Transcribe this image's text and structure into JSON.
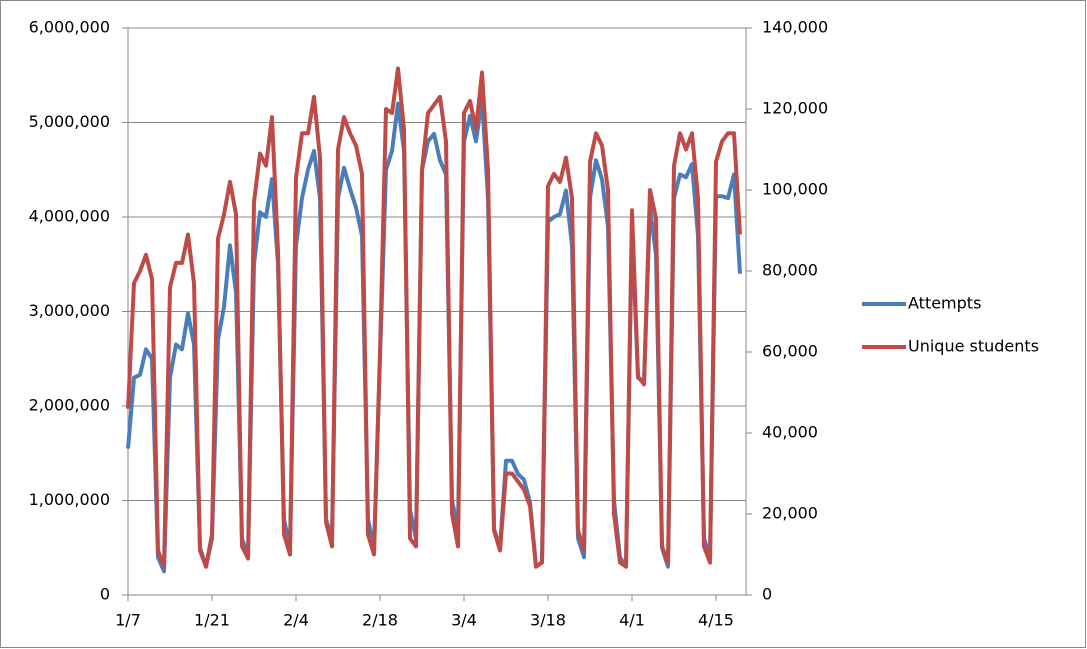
{
  "chart_data": {
    "type": "line",
    "categories": [
      "1/7",
      null,
      null,
      null,
      null,
      null,
      null,
      null,
      null,
      null,
      null,
      null,
      null,
      null,
      "1/21",
      null,
      null,
      null,
      null,
      null,
      null,
      null,
      null,
      null,
      null,
      null,
      null,
      null,
      "2/4",
      null,
      null,
      null,
      null,
      null,
      null,
      null,
      null,
      null,
      null,
      null,
      null,
      null,
      "2/18",
      null,
      null,
      null,
      null,
      null,
      null,
      null,
      null,
      null,
      null,
      null,
      null,
      null,
      "3/4",
      null,
      null,
      null,
      null,
      null,
      null,
      null,
      null,
      null,
      null,
      null,
      null,
      null,
      "3/18",
      null,
      null,
      null,
      null,
      null,
      null,
      null,
      null,
      null,
      null,
      null,
      null,
      null,
      "4/1",
      null,
      null,
      null,
      null,
      null,
      null,
      null,
      null,
      null,
      null,
      null,
      null,
      null,
      "4/15",
      null,
      null,
      null,
      null
    ],
    "series": [
      {
        "name": "Attempts",
        "color": "#4a7ebb",
        "axis": "y",
        "values": [
          1550000,
          2300000,
          2330000,
          2600000,
          2500000,
          400000,
          250000,
          2300000,
          2650000,
          2600000,
          2980000,
          2650000,
          500000,
          300000,
          600000,
          2700000,
          3050000,
          3700000,
          3200000,
          600000,
          400000,
          3500000,
          4050000,
          4000000,
          4400000,
          3500000,
          800000,
          500000,
          3700000,
          4200000,
          4500000,
          4700000,
          4200000,
          800000,
          600000,
          4200000,
          4520000,
          4300000,
          4100000,
          3800000,
          800000,
          500000,
          2500000,
          4500000,
          4700000,
          5200000,
          4700000,
          900000,
          600000,
          4500000,
          4800000,
          4880000,
          4600000,
          4450000,
          1000000,
          700000,
          4800000,
          5070000,
          4800000,
          5250000,
          4200000,
          700000,
          500000,
          1420000,
          1420000,
          1280000,
          1220000,
          980000,
          300000,
          350000,
          3950000,
          4000000,
          4030000,
          4280000,
          3700000,
          600000,
          400000,
          4200000,
          4600000,
          4400000,
          3900000,
          1000000,
          400000,
          300000,
          3900000,
          2300000,
          2250000,
          4100000,
          3600000,
          500000,
          300000,
          4200000,
          4450000,
          4420000,
          4560000,
          3800000,
          600000,
          400000,
          4220000,
          4220000,
          4200000,
          4450000,
          3400000
        ]
      },
      {
        "name": "Unique students",
        "color": "#be4b48",
        "axis": "y2",
        "values": [
          46000,
          77000,
          80000,
          84000,
          78000,
          11000,
          7000,
          76000,
          82000,
          82000,
          89000,
          77000,
          11000,
          7000,
          15000,
          88000,
          94000,
          102000,
          94000,
          12000,
          9000,
          97000,
          109000,
          106000,
          118000,
          85000,
          15000,
          10000,
          103000,
          114000,
          114000,
          123000,
          108000,
          18000,
          12000,
          110000,
          118000,
          114000,
          111000,
          104000,
          15000,
          10000,
          60000,
          120000,
          119000,
          130000,
          115000,
          14000,
          12000,
          105000,
          119000,
          121000,
          123000,
          112000,
          20000,
          12000,
          119000,
          122000,
          115000,
          129000,
          105000,
          16000,
          11000,
          30000,
          30000,
          28000,
          26000,
          22000,
          7000,
          8000,
          101000,
          104000,
          102000,
          108000,
          98000,
          16000,
          11000,
          107000,
          114000,
          111000,
          100000,
          20000,
          8000,
          7000,
          95000,
          54000,
          52000,
          100000,
          93000,
          12000,
          8000,
          106000,
          114000,
          110000,
          114000,
          98000,
          12000,
          8000,
          107000,
          112000,
          114000,
          114000,
          89000
        ]
      }
    ],
    "ylim": [
      0,
      6000000
    ],
    "yticks": [
      0,
      {
        "value": 1000000,
        "label": "1,000,000"
      },
      {
        "value": 2000000,
        "label": "2,000,000"
      },
      {
        "value": 3000000,
        "label": "3,000,000"
      },
      {
        "value": 4000000,
        "label": "4,000,000"
      },
      {
        "value": 5000000,
        "label": "5,000,000"
      },
      {
        "value": 6000000,
        "label": "6,000,000"
      }
    ],
    "y2lim": [
      0,
      140000
    ],
    "y2ticks": [
      0,
      {
        "value": 20000,
        "label": "20,000"
      },
      {
        "value": 40000,
        "label": "40,000"
      },
      {
        "value": 60000,
        "label": "60,000"
      },
      {
        "value": 80000,
        "label": "80,000"
      },
      {
        "value": 100000,
        "label": "100,000"
      },
      {
        "value": 120000,
        "label": "120,000"
      },
      {
        "value": 140000,
        "label": "140,000"
      }
    ],
    "grid": true,
    "legend": "right"
  }
}
